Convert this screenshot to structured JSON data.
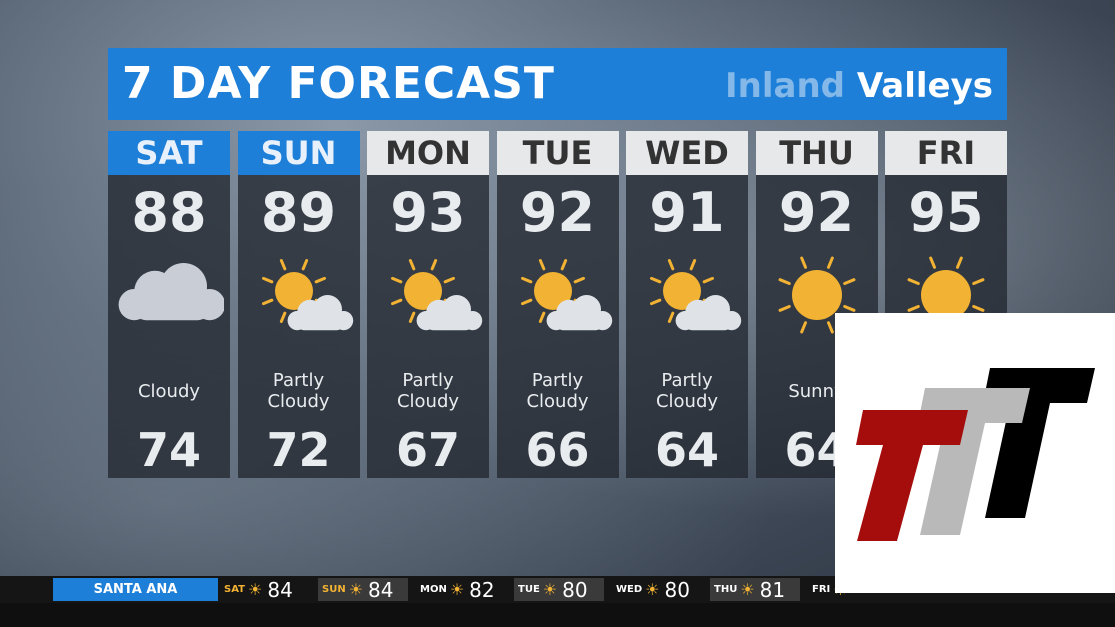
{
  "header": {
    "title": "7 DAY FORECAST",
    "region_faded": "Inland",
    "region": "Valleys"
  },
  "colors": {
    "accent": "#1e7fd8",
    "sun": "#f2b233",
    "cloud": "#c9ced6"
  },
  "days": [
    {
      "day": "SAT",
      "high": "88",
      "icon": "cloud-icon",
      "cond": [
        "Cloudy"
      ],
      "low": "74",
      "current": true
    },
    {
      "day": "SUN",
      "high": "89",
      "icon": "partly-cloudy-icon",
      "cond": [
        "Partly",
        "Cloudy"
      ],
      "low": "72",
      "current": true
    },
    {
      "day": "MON",
      "high": "93",
      "icon": "partly-cloudy-icon",
      "cond": [
        "Partly",
        "Cloudy"
      ],
      "low": "67"
    },
    {
      "day": "TUE",
      "high": "92",
      "icon": "partly-cloudy-icon",
      "cond": [
        "Partly",
        "Cloudy"
      ],
      "low": "66"
    },
    {
      "day": "WED",
      "high": "91",
      "icon": "partly-cloudy-icon",
      "cond": [
        "Partly",
        "Cloudy"
      ],
      "low": "64"
    },
    {
      "day": "THU",
      "high": "92",
      "icon": "sun-icon",
      "cond": [
        "Sunny"
      ],
      "low": "64"
    },
    {
      "day": "FRI",
      "high": "95",
      "icon": "sun-icon",
      "cond": [],
      "low": ""
    }
  ],
  "ticker": {
    "city": "SANTA ANA",
    "items": [
      {
        "day": "SAT",
        "temp": "84"
      },
      {
        "day": "SUN",
        "temp": "84"
      },
      {
        "day": "MON",
        "temp": "82"
      },
      {
        "day": "TUE",
        "temp": "80"
      },
      {
        "day": "WED",
        "temp": "80"
      },
      {
        "day": "THU",
        "temp": "81"
      },
      {
        "day": "FRI",
        "temp": ""
      }
    ]
  }
}
